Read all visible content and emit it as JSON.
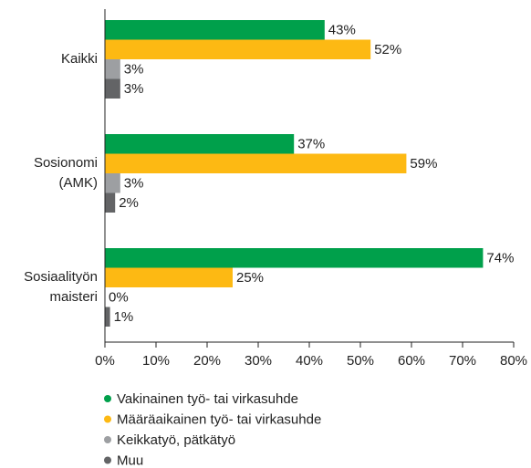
{
  "chart_data": {
    "type": "bar",
    "orientation": "horizontal",
    "categories": [
      "Kaikki",
      "Sosionomi (AMK)",
      "Sosiaalityön maisteri"
    ],
    "series": [
      {
        "name": "Vakinainen työ- tai virkasuhde",
        "color": "#00a04b",
        "values": [
          43,
          37,
          74
        ],
        "value_labels": [
          "43%",
          "37%",
          "74%"
        ]
      },
      {
        "name": "Määräaikainen työ- tai virkasuhde",
        "color": "#fdb913",
        "values": [
          52,
          59,
          25
        ],
        "value_labels": [
          "52%",
          "59%",
          "25%"
        ]
      },
      {
        "name": "Keikkatyö, pätkätyö",
        "color": "#9d9fa2",
        "values": [
          3,
          3,
          0
        ],
        "value_labels": [
          "3%",
          "3%",
          "0%"
        ]
      },
      {
        "name": "Muu",
        "color": "#636466",
        "values": [
          3,
          2,
          1
        ],
        "value_labels": [
          "3%",
          "2%",
          "1%"
        ]
      }
    ],
    "xlim": [
      0,
      80
    ],
    "xticks": [
      {
        "value": 0,
        "label": "0%"
      },
      {
        "value": 10,
        "label": "10%"
      },
      {
        "value": 20,
        "label": "20%"
      },
      {
        "value": 30,
        "label": "30%"
      },
      {
        "value": 40,
        "label": "40%"
      },
      {
        "value": 50,
        "label": "50%"
      },
      {
        "value": 60,
        "label": "60%"
      },
      {
        "value": 70,
        "label": "70%"
      },
      {
        "value": 80,
        "label": "80%"
      }
    ],
    "legend": "bottom"
  }
}
